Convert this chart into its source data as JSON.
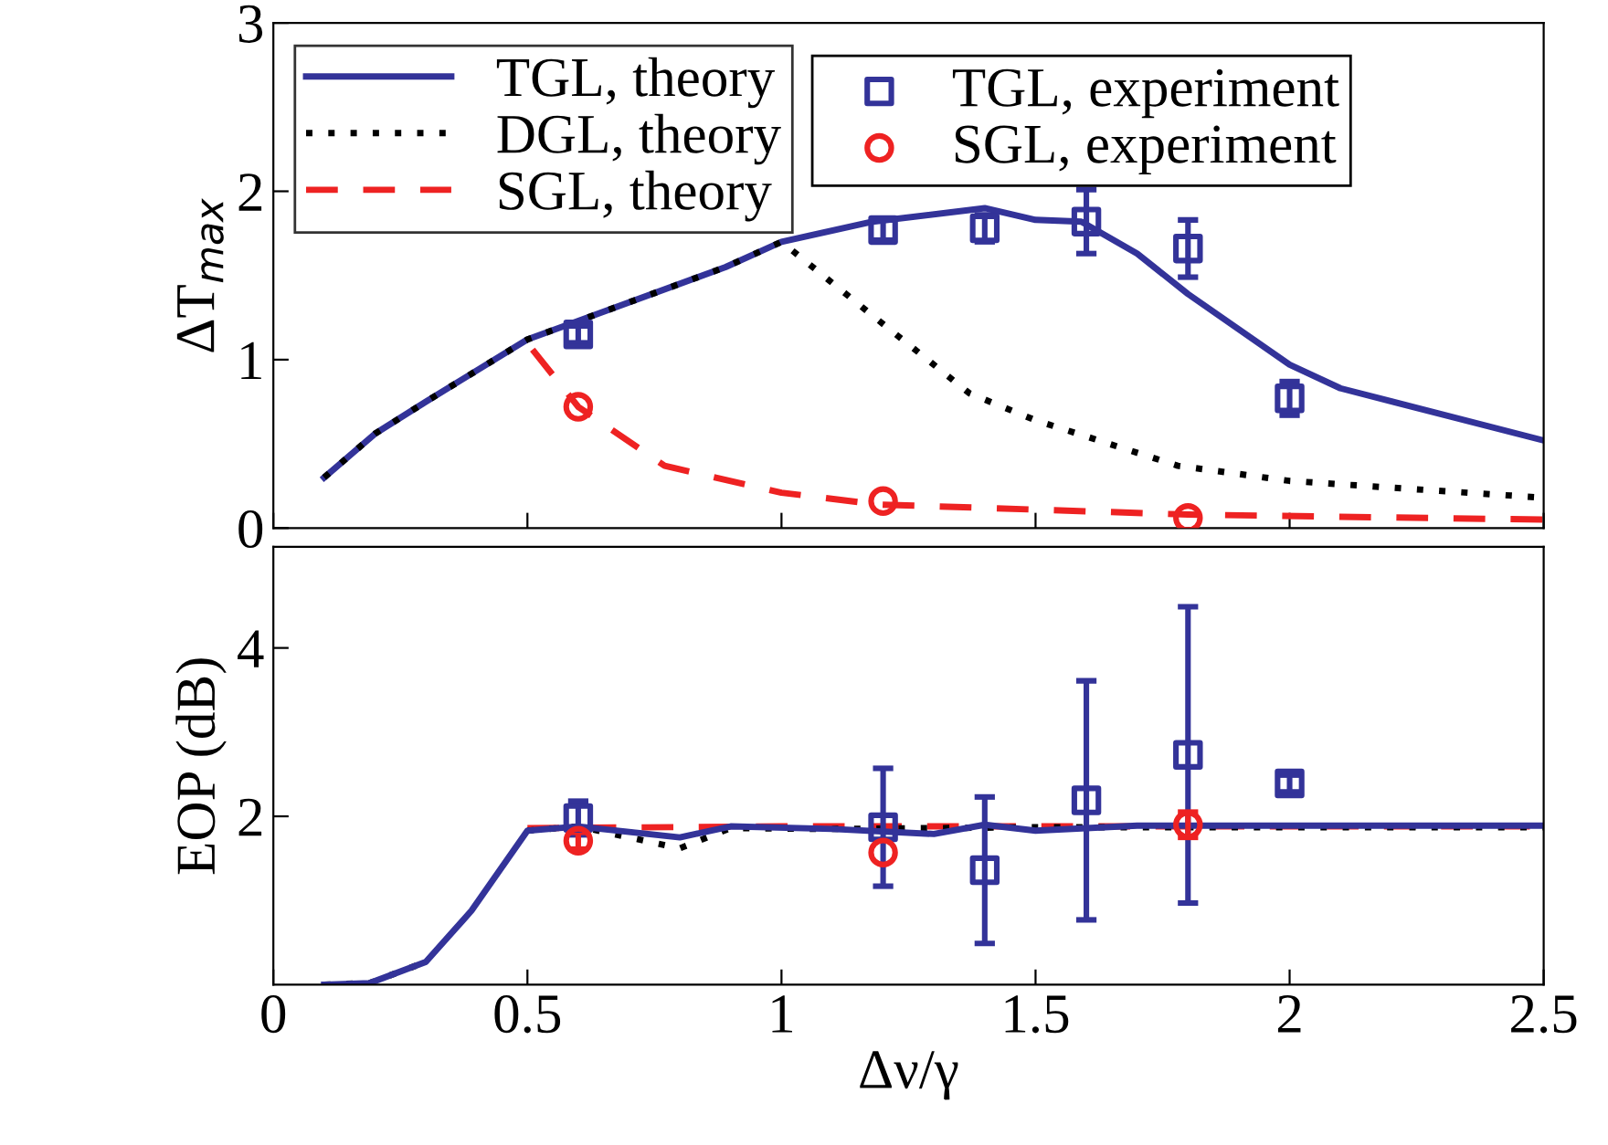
{
  "chart_data": [
    {
      "type": "line",
      "ylabel": "ΔT$_{max}$",
      "xlim": [
        0,
        2.5
      ],
      "ylim": [
        0,
        3
      ],
      "xticks": [
        0,
        0.5,
        1,
        1.5,
        2,
        2.5
      ],
      "yticks": [
        0,
        1,
        2,
        3
      ],
      "tick_labels": "y",
      "legend": "top",
      "grid": false,
      "series": [
        {
          "name": "TGL, theory",
          "color": "#333399",
          "line_style": "solid",
          "marker": "none",
          "x": [
            0.1,
            0.2,
            0.3,
            0.5,
            0.6,
            0.89,
            1.0,
            1.18,
            1.4,
            1.5,
            1.59,
            1.7,
            1.8,
            2.0,
            2.1,
            2.5
          ],
          "values": [
            0.3,
            0.56,
            0.75,
            1.12,
            1.23,
            1.55,
            1.7,
            1.82,
            1.9,
            1.83,
            1.82,
            1.63,
            1.39,
            0.97,
            0.83,
            0.52
          ]
        },
        {
          "name": "DGL, theory",
          "color": "#000000",
          "line_style": "dotted",
          "marker": "none",
          "x": [
            0.1,
            0.2,
            0.3,
            0.5,
            0.6,
            0.89,
            1.0,
            1.18,
            1.37,
            1.5,
            1.78,
            2.0,
            2.5
          ],
          "values": [
            0.3,
            0.56,
            0.75,
            1.12,
            1.23,
            1.55,
            1.7,
            1.26,
            0.8,
            0.64,
            0.37,
            0.28,
            0.18
          ]
        },
        {
          "name": "SGL, theory",
          "color": "#ee2222",
          "line_style": "dashed",
          "marker": "none",
          "x": [
            0.51,
            0.6,
            0.77,
            1.0,
            1.19,
            1.8,
            2.5
          ],
          "values": [
            1.06,
            0.72,
            0.37,
            0.21,
            0.14,
            0.08,
            0.05
          ]
        },
        {
          "name": "TGL, experiment",
          "type": "scatter",
          "color": "#333399",
          "marker": "square",
          "x": [
            0.6,
            1.2,
            1.4,
            1.6,
            1.8,
            2.0
          ],
          "values": [
            1.15,
            1.77,
            1.78,
            1.82,
            1.66,
            0.77
          ],
          "errors": [
            0.05,
            0.06,
            0.08,
            0.19,
            0.17,
            0.1
          ]
        },
        {
          "name": "SGL, experiment",
          "type": "scatter",
          "color": "#ee2222",
          "marker": "circle",
          "x": [
            0.6,
            1.2,
            1.8
          ],
          "values": [
            0.72,
            0.16,
            0.06
          ]
        }
      ]
    },
    {
      "type": "line",
      "xlabel": "Δν/γ",
      "ylabel": "EOP (dB)",
      "xlim": [
        0,
        2.5
      ],
      "ylim": [
        0,
        5.2
      ],
      "xticks": [
        0,
        0.5,
        1,
        1.5,
        2,
        2.5
      ],
      "yticks": [
        2,
        4
      ],
      "grid": false,
      "series": [
        {
          "color": "#ee2222",
          "line_style": "dashed",
          "marker": "none",
          "x": [
            0.5,
            1.0,
            1.5,
            2.0,
            2.5
          ],
          "values": [
            1.86,
            1.88,
            1.88,
            1.88,
            1.88
          ]
        },
        {
          "color": "#000000",
          "line_style": "dotted",
          "marker": "none",
          "x": [
            0.1,
            0.19,
            0.3,
            0.39,
            0.5,
            0.6,
            0.8,
            0.9,
            1.1,
            1.5,
            2.0,
            2.5
          ],
          "values": [
            0,
            0.02,
            0.27,
            null,
            1.83,
            1.88,
            1.62,
            1.86,
            1.85,
            1.87,
            1.87,
            1.87
          ]
        },
        {
          "color": "#333399",
          "line_style": "solid",
          "marker": "none",
          "x": [
            0.1,
            0.19,
            0.3,
            0.39,
            0.5,
            0.6,
            0.8,
            0.9,
            1.1,
            1.3,
            1.4,
            1.5,
            1.7,
            2.0,
            2.5
          ],
          "values": [
            0,
            0.02,
            0.27,
            0.88,
            1.83,
            1.88,
            1.75,
            1.88,
            1.85,
            1.79,
            1.9,
            1.83,
            1.89,
            1.89,
            1.89
          ]
        },
        {
          "type": "scatter",
          "color": "#333399",
          "marker": "square",
          "x": [
            0.6,
            1.2,
            1.4,
            1.6,
            1.8,
            2.0
          ],
          "values": [
            1.98,
            1.87,
            1.36,
            2.19,
            2.73,
            2.39
          ],
          "errors": [
            0.2,
            0.7,
            0.87,
            1.42,
            1.76,
            0.1
          ]
        },
        {
          "type": "scatter",
          "color": "#ee2222",
          "marker": "circle",
          "x": [
            0.6,
            1.2,
            1.8
          ],
          "values": [
            1.71,
            1.57,
            1.9
          ],
          "errors": [
            0.1,
            null,
            0.15
          ]
        }
      ]
    }
  ]
}
